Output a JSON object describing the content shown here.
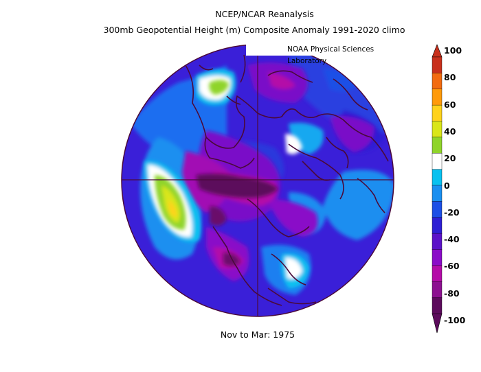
{
  "header": {
    "title_line1": "NCEP/NCAR Reanalysis",
    "title_line2": "300mb Geopotential Height (m) Composite Anomaly 1991-2020 climo",
    "credit": "NOAA Physical Sciences Laboratory"
  },
  "footer": {
    "period": "Nov to Mar: 1975"
  },
  "colorbar": {
    "labels": [
      "100",
      "80",
      "60",
      "40",
      "20",
      "0",
      "-20",
      "-40",
      "-60",
      "-80",
      "-100"
    ],
    "colors": [
      "#c8301c",
      "#f26b10",
      "#ff9a0a",
      "#ffd21c",
      "#d9e61a",
      "#8fd42a",
      "#ffffff",
      "#08c1f0",
      "#1a8ff0",
      "#1c4fe6",
      "#2d1fd4",
      "#5b12c8",
      "#8a0bc8",
      "#b40ba8",
      "#8c1090",
      "#5c0b5c"
    ]
  },
  "map": {
    "projection": "north-polar-stereographic",
    "background_color": "#3e1cd8",
    "coastline_color": "#4a0a3a"
  }
}
